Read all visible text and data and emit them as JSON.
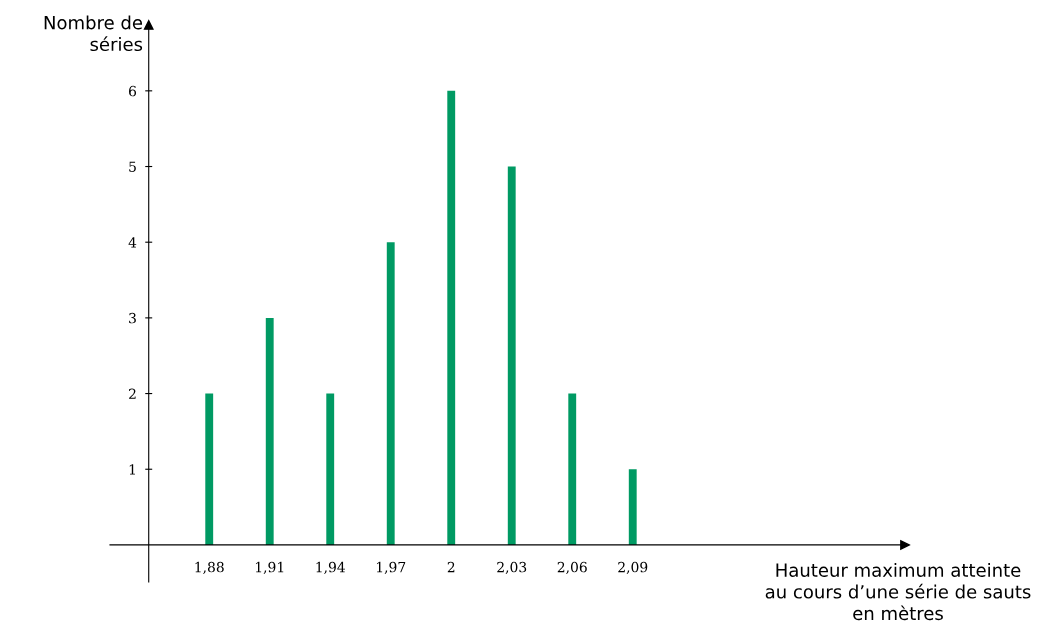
{
  "chart_data": {
    "type": "bar",
    "categories": [
      "1,88",
      "1,91",
      "1,94",
      "1,97",
      "2",
      "2,03",
      "2,06",
      "2,09"
    ],
    "values": [
      2,
      3,
      2,
      4,
      6,
      5,
      2,
      1
    ],
    "color": "#009a63",
    "ylim": [
      -0.49,
      6.87
    ],
    "yticks": [
      1,
      2,
      3,
      4,
      5,
      6
    ],
    "ylabel": "Nombre de\nséries",
    "annotations": [
      "Hauteur maximum atteinte\nau cours d’une série de sauts\nen mètres"
    ],
    "grid": false,
    "legend": false
  }
}
